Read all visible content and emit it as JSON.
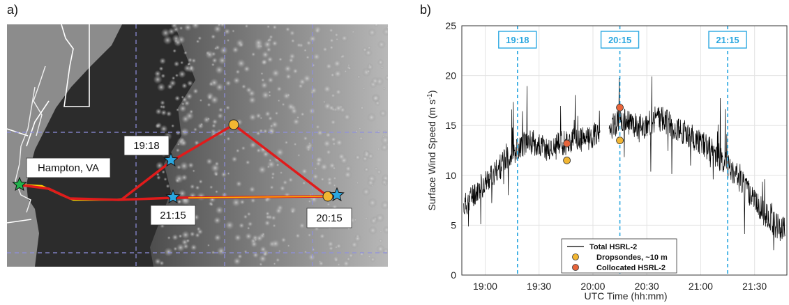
{
  "panel_a": {
    "label": "a)",
    "place": "Hampton, VA",
    "times": [
      "19:18",
      "21:15",
      "20:15"
    ]
  },
  "chart_data": {
    "type": "line",
    "panel_label": "b)",
    "xlabel": "UTC Time (hh:mm)",
    "ylabel": "Surface Wind Speed (m s",
    "ylabel_exponent": "-1",
    "ylabel_close": ")",
    "x_unit": "minutes after 18:00 UTC",
    "xlim": [
      47,
      228
    ],
    "ylim": [
      0,
      25
    ],
    "x_ticks": [
      60,
      90,
      120,
      150,
      180,
      210
    ],
    "x_tick_labels": [
      "19:00",
      "19:30",
      "20:00",
      "20:30",
      "21:00",
      "21:30"
    ],
    "y_ticks": [
      0,
      5,
      10,
      15,
      20,
      25
    ],
    "y_tick_labels": [
      "0",
      "5",
      "10",
      "15",
      "20",
      "25"
    ],
    "grid": true,
    "legend_placement": "bottom-center",
    "vlines": [
      {
        "x": 78,
        "label": "19:18"
      },
      {
        "x": 135,
        "label": "20:15"
      },
      {
        "x": 195,
        "label": "21:15"
      }
    ],
    "series": [
      {
        "name": "Total HSRL-2",
        "color": "#000000",
        "x": [
          48,
          52,
          56,
          60,
          64,
          68,
          72,
          76,
          80,
          84,
          88,
          92,
          96,
          100,
          104,
          108,
          112,
          116,
          120,
          124,
          136,
          140,
          144,
          148,
          152,
          156,
          160,
          164,
          168,
          172,
          176,
          180,
          184,
          188,
          192,
          196,
          200,
          204,
          208,
          212,
          216,
          220,
          224,
          227
        ],
        "y": [
          6.8,
          7.8,
          8.6,
          9.3,
          10.0,
          10.8,
          11.6,
          12.4,
          13.0,
          13.5,
          13.2,
          12.8,
          12.5,
          13.0,
          13.3,
          13.4,
          13.5,
          13.6,
          14.0,
          14.3,
          15.5,
          15.2,
          15.0,
          14.8,
          15.3,
          15.8,
          15.5,
          15.0,
          14.6,
          14.2,
          13.8,
          13.3,
          12.8,
          12.2,
          11.5,
          10.7,
          10.0,
          9.0,
          8.0,
          7.0,
          6.0,
          5.2,
          4.7,
          4.6
        ]
      },
      {
        "name": "Dropsondes, ~10 m",
        "color": "#f2b632",
        "points": [
          [
            105.5,
            11.5
          ],
          [
            135,
            13.5
          ]
        ]
      },
      {
        "name": "Collocated HSRL-2",
        "color": "#e8643a",
        "points": [
          [
            105.5,
            13.2
          ],
          [
            135,
            16.8
          ]
        ]
      }
    ]
  },
  "colors": {
    "guide": "#2aa7e0",
    "track": "#e01b1b",
    "track_highlight": "#ffd200",
    "star_blue": "#2aa7e0",
    "star_green": "#22b24c"
  }
}
